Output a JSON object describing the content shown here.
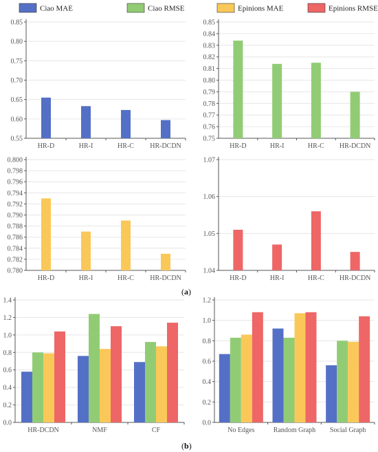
{
  "legend": [
    {
      "label": "Ciao MAE",
      "color": "#5470c6"
    },
    {
      "label": "Ciao RMSE",
      "color": "#91cc75"
    },
    {
      "label": "Epinions MAE",
      "color": "#fac858"
    },
    {
      "label": "Epinions  RMSE",
      "color": "#ee6666"
    }
  ],
  "captions": {
    "a": "a",
    "b": "b"
  },
  "chart_data": [
    {
      "type": "bar",
      "series_color": "#5470c6",
      "categories": [
        "HR-D",
        "HR-I",
        "HR-C",
        "HR-DCDN"
      ],
      "values": [
        0.655,
        0.633,
        0.623,
        0.597
      ],
      "ylim": [
        0.55,
        0.85
      ],
      "yticks": [
        "0.55",
        "0.60",
        "0.65",
        "0.70",
        "0.75",
        "0.80",
        "0.85"
      ]
    },
    {
      "type": "bar",
      "series_color": "#91cc75",
      "categories": [
        "HR-D",
        "HR-I",
        "HR-C",
        "HR-DCDN"
      ],
      "values": [
        0.834,
        0.814,
        0.815,
        0.79
      ],
      "ylim": [
        0.75,
        0.85
      ],
      "yticks": [
        "0.75",
        "0.76",
        "0.77",
        "0.78",
        "0.79",
        "0.80",
        "0.81",
        "0.82",
        "0.83",
        "0.84",
        "0.85"
      ]
    },
    {
      "type": "bar",
      "series_color": "#fac858",
      "categories": [
        "HR-D",
        "HR-I",
        "HR-C",
        "HR-DCDN"
      ],
      "values": [
        0.793,
        0.787,
        0.789,
        0.783
      ],
      "ylim": [
        0.78,
        0.8
      ],
      "yticks": [
        "0.780",
        "0.782",
        "0.784",
        "0.786",
        "0.788",
        "0.790",
        "0.792",
        "0.794",
        "0.796",
        "0.798",
        "0.800"
      ]
    },
    {
      "type": "bar",
      "series_color": "#ee6666",
      "categories": [
        "HR-D",
        "HR-I",
        "HR-C",
        "HR-DCDN"
      ],
      "values": [
        1.051,
        1.047,
        1.056,
        1.045
      ],
      "ylim": [
        1.04,
        1.07
      ],
      "yticks": [
        "1.04",
        "1.05",
        "1.06",
        "1.07"
      ]
    },
    {
      "type": "bar",
      "categories": [
        "HR-DCDN",
        "NMF",
        "CF"
      ],
      "series": [
        {
          "color": "#5470c6",
          "values": [
            0.58,
            0.76,
            0.69
          ]
        },
        {
          "color": "#91cc75",
          "values": [
            0.8,
            1.24,
            0.92
          ]
        },
        {
          "color": "#fac858",
          "values": [
            0.79,
            0.84,
            0.87
          ]
        },
        {
          "color": "#ee6666",
          "values": [
            1.04,
            1.1,
            1.14
          ]
        }
      ],
      "ylim": [
        0.0,
        1.4
      ],
      "yticks": [
        "0.0",
        "0.2",
        "0.4",
        "0.6",
        "0.8",
        "1.0",
        "1.2",
        "1.4"
      ]
    },
    {
      "type": "bar",
      "categories": [
        "No Edges",
        "Random Graph",
        "Social Graph"
      ],
      "series": [
        {
          "color": "#5470c6",
          "values": [
            0.67,
            0.92,
            0.56
          ]
        },
        {
          "color": "#91cc75",
          "values": [
            0.83,
            0.83,
            0.8
          ]
        },
        {
          "color": "#fac858",
          "values": [
            0.86,
            1.07,
            0.79
          ]
        },
        {
          "color": "#ee6666",
          "values": [
            1.08,
            1.08,
            1.04
          ]
        }
      ],
      "ylim": [
        0.0,
        1.2
      ],
      "yticks": [
        "0.0",
        "0.2",
        "0.4",
        "0.6",
        "0.8",
        "1.0",
        "1.2"
      ]
    }
  ]
}
